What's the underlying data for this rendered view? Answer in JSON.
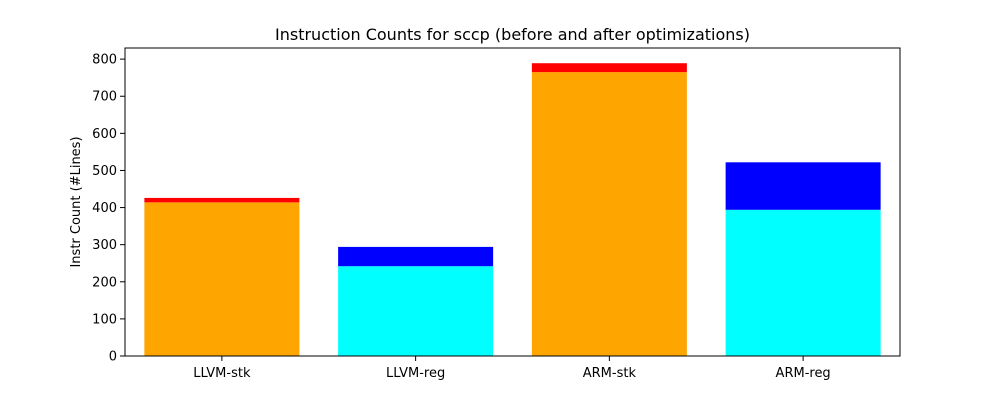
{
  "chart_data": {
    "type": "bar",
    "stacked": true,
    "title": "Instruction Counts for sccp (before and after optimizations)",
    "xlabel": "",
    "ylabel": "Instr Count (#Lines)",
    "ylim": [
      0,
      830
    ],
    "yticks": [
      0,
      100,
      200,
      300,
      400,
      500,
      600,
      700,
      800
    ],
    "grid": false,
    "categories": [
      "LLVM-stk",
      "LLVM-reg",
      "ARM-stk",
      "ARM-reg"
    ],
    "bars": [
      {
        "category": "LLVM-stk",
        "base": 414,
        "base_color": "#ffa500",
        "top": 12,
        "top_color": "#ff0000"
      },
      {
        "category": "LLVM-reg",
        "base": 242,
        "base_color": "#00ffff",
        "top": 52,
        "top_color": "#0000ff"
      },
      {
        "category": "ARM-stk",
        "base": 765,
        "base_color": "#ffa500",
        "top": 24,
        "top_color": "#ff0000"
      },
      {
        "category": "ARM-reg",
        "base": 394,
        "base_color": "#00ffff",
        "top": 128,
        "top_color": "#0000ff"
      }
    ]
  }
}
